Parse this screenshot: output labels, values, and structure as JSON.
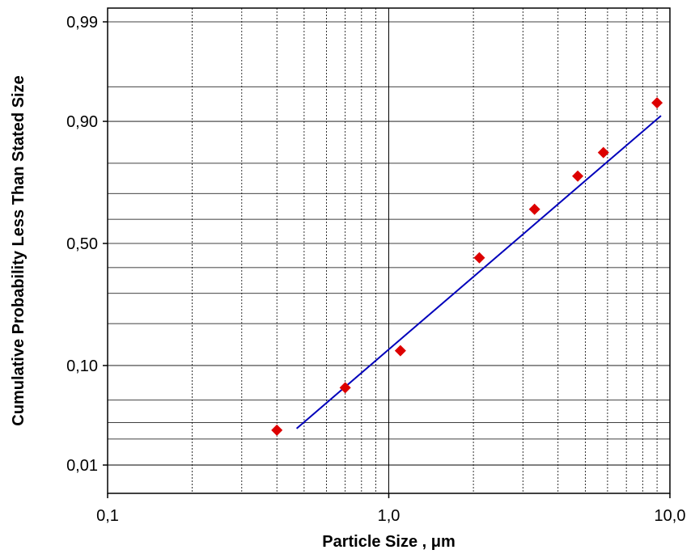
{
  "chart_data": {
    "type": "scatter",
    "xscale": "log",
    "yscale": "probability",
    "xlim": [
      0.1,
      10.0
    ],
    "ylim": [
      0.01,
      0.99
    ],
    "xlabel": "Particle Size , μm",
    "ylabel": "Cumulative Probability Less Than Stated Size",
    "xticks": [
      {
        "value": 0.1,
        "label": "0,1"
      },
      {
        "value": 1.0,
        "label": "1,0"
      },
      {
        "value": 10.0,
        "label": "10,0"
      }
    ],
    "yticks": [
      {
        "value": 0.01,
        "label": "0,01"
      },
      {
        "value": 0.1,
        "label": "0,10"
      },
      {
        "value": 0.5,
        "label": "0,50"
      },
      {
        "value": 0.9,
        "label": "0,90"
      },
      {
        "value": 0.99,
        "label": "0,99"
      }
    ],
    "grid": true,
    "series": [
      {
        "kind": "points",
        "marker": "diamond",
        "color": "#dd0000",
        "points": [
          {
            "x": 0.4,
            "y": 0.025
          },
          {
            "x": 0.7,
            "y": 0.065
          },
          {
            "x": 1.1,
            "y": 0.13
          },
          {
            "x": 2.1,
            "y": 0.44
          },
          {
            "x": 3.3,
            "y": 0.64
          },
          {
            "x": 4.7,
            "y": 0.76
          },
          {
            "x": 5.8,
            "y": 0.83
          },
          {
            "x": 9.0,
            "y": 0.93
          }
        ]
      },
      {
        "kind": "fit-line",
        "color": "#0000bb",
        "points": [
          {
            "x": 0.47,
            "y": 0.026
          },
          {
            "x": 9.3,
            "y": 0.91
          }
        ]
      }
    ]
  }
}
